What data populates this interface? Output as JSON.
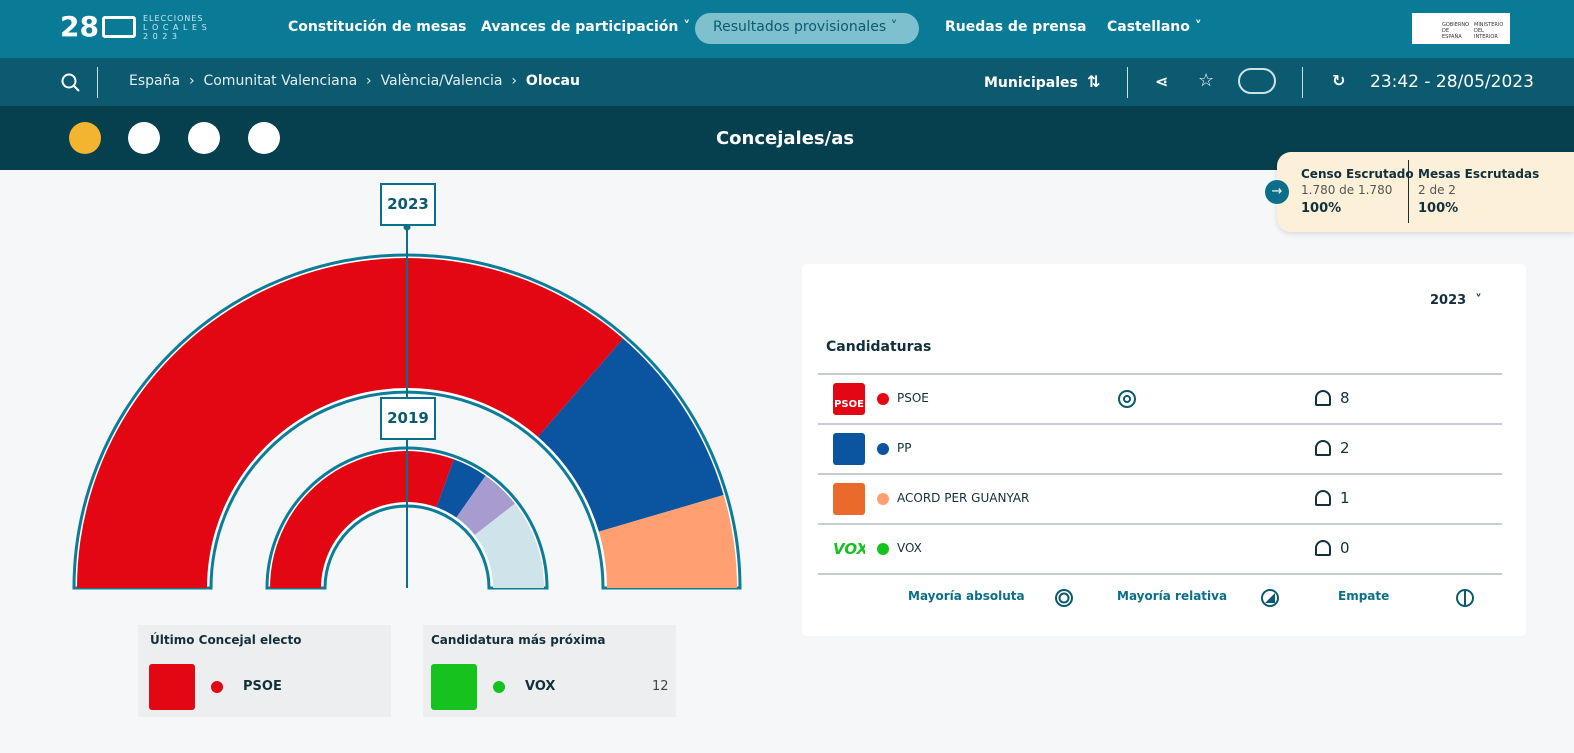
{
  "header": {
    "logo_number": "28",
    "logo_line1": "ELECCIONES",
    "logo_line2": "L O C A L E S",
    "logo_line3": "2 0 2 3",
    "gov": "GOBIERNO DE ESPAÑA",
    "ministry": "MINISTERIO DEL INTERIOR",
    "nav": [
      "Constitución de mesas",
      "Avances de participación",
      "Resultados provisionales",
      "Ruedas de prensa",
      "Castellano"
    ]
  },
  "breadcrumb": [
    "España",
    "Comunitat Valenciana",
    "València/Valencia",
    "Olocau"
  ],
  "election_type": "Municipales",
  "timestamp": "23:42 - 28/05/2023",
  "section_title": "Concejales/as",
  "census": {
    "label": "Censo Escrutado",
    "detail": "1.780 de 1.780",
    "percent": "100%"
  },
  "tables": {
    "label": "Mesas Escrutadas",
    "detail": "2 de 2",
    "percent": "100%"
  },
  "chart_years": {
    "outer": "2023",
    "inner": "2019"
  },
  "last_elected": {
    "label": "Último Concejal electo",
    "party": "PSOE",
    "color": "#e30613"
  },
  "closest": {
    "label": "Candidatura más próxima",
    "party": "VOX",
    "color": "#16c21e",
    "votes": "12"
  },
  "results": {
    "year": "2023",
    "heading": "Candidaturas",
    "rows": [
      {
        "name": "PSOE",
        "color": "#e30613",
        "seats": 8,
        "absolute_majority": true
      },
      {
        "name": "PP",
        "color": "#0b54a0",
        "seats": 2,
        "absolute_majority": false
      },
      {
        "name": "ACORD PER GUANYAR",
        "color": "#ff9f72",
        "seats": 1,
        "absolute_majority": false
      },
      {
        "name": "VOX",
        "color": "#16c21e",
        "seats": 0,
        "absolute_majority": false
      }
    ],
    "legend": [
      "Mayoría absoluta",
      "Mayoría relativa",
      "Empate"
    ]
  }
}
